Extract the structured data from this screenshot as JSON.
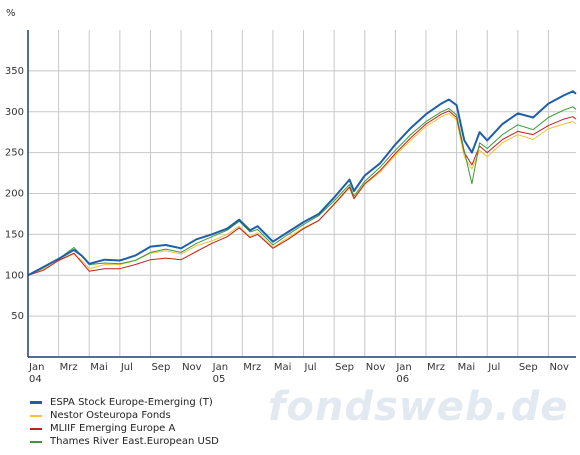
{
  "chart_data": {
    "type": "line",
    "ylabel": "%",
    "ylim": [
      0,
      400
    ],
    "yticks": [
      50,
      100,
      150,
      200,
      250,
      300,
      350
    ],
    "x_ticks": [
      {
        "month": "Jan",
        "year": "04",
        "t": 0
      },
      {
        "month": "Mrz",
        "year": "",
        "t": 2
      },
      {
        "month": "Mai",
        "year": "",
        "t": 4
      },
      {
        "month": "Jul",
        "year": "",
        "t": 6
      },
      {
        "month": "Sep",
        "year": "",
        "t": 8
      },
      {
        "month": "Nov",
        "year": "",
        "t": 10
      },
      {
        "month": "Jan",
        "year": "05",
        "t": 12
      },
      {
        "month": "Mrz",
        "year": "",
        "t": 14
      },
      {
        "month": "Mai",
        "year": "",
        "t": 16
      },
      {
        "month": "Jul",
        "year": "",
        "t": 18
      },
      {
        "month": "Sep",
        "year": "",
        "t": 20
      },
      {
        "month": "Nov",
        "year": "",
        "t": 22
      },
      {
        "month": "Jan",
        "year": "06",
        "t": 24
      },
      {
        "month": "Mrz",
        "year": "",
        "t": 26
      },
      {
        "month": "Mai",
        "year": "",
        "t": 28
      },
      {
        "month": "Jul",
        "year": "",
        "t": 30
      },
      {
        "month": "Sep",
        "year": "",
        "t": 32
      },
      {
        "month": "Nov",
        "year": "",
        "t": 34
      }
    ],
    "xlim": [
      0,
      35.8
    ],
    "grid": true,
    "series": [
      {
        "name": "ESPA Stock Europe-Emerging (T)",
        "color": "#1f5fa8",
        "width": 2,
        "points": [
          [
            0,
            100
          ],
          [
            1,
            110
          ],
          [
            2,
            120
          ],
          [
            3,
            131
          ],
          [
            3.5,
            124
          ],
          [
            4,
            114
          ],
          [
            5,
            119
          ],
          [
            6,
            118
          ],
          [
            7,
            124
          ],
          [
            8,
            135
          ],
          [
            9,
            137
          ],
          [
            10,
            133
          ],
          [
            11,
            144
          ],
          [
            12,
            150
          ],
          [
            13,
            157
          ],
          [
            13.8,
            168
          ],
          [
            14.5,
            155
          ],
          [
            15,
            160
          ],
          [
            16,
            141
          ],
          [
            17,
            153
          ],
          [
            18,
            165
          ],
          [
            19,
            175
          ],
          [
            20,
            195
          ],
          [
            21,
            217
          ],
          [
            21.3,
            203
          ],
          [
            22,
            222
          ],
          [
            23,
            237
          ],
          [
            24,
            260
          ],
          [
            25,
            280
          ],
          [
            26,
            297
          ],
          [
            27,
            310
          ],
          [
            27.5,
            315
          ],
          [
            28,
            308
          ],
          [
            28.5,
            265
          ],
          [
            29,
            250
          ],
          [
            29.5,
            275
          ],
          [
            30,
            265
          ],
          [
            31,
            285
          ],
          [
            32,
            298
          ],
          [
            33,
            293
          ],
          [
            34,
            310
          ],
          [
            35,
            320
          ],
          [
            35.6,
            325
          ],
          [
            35.8,
            322
          ]
        ]
      },
      {
        "name": "Nestor Osteuropa Fonds",
        "color": "#f2c230",
        "width": 1,
        "points": [
          [
            0,
            100
          ],
          [
            1,
            107
          ],
          [
            2,
            118
          ],
          [
            3,
            126
          ],
          [
            3.5,
            118
          ],
          [
            4,
            108
          ],
          [
            5,
            113
          ],
          [
            6,
            113
          ],
          [
            7,
            118
          ],
          [
            8,
            127
          ],
          [
            9,
            130
          ],
          [
            10,
            126
          ],
          [
            11,
            136
          ],
          [
            12,
            142
          ],
          [
            13,
            150
          ],
          [
            13.8,
            160
          ],
          [
            14.5,
            147
          ],
          [
            15,
            152
          ],
          [
            16,
            134
          ],
          [
            17,
            146
          ],
          [
            18,
            158
          ],
          [
            19,
            167
          ],
          [
            20,
            186
          ],
          [
            21,
            207
          ],
          [
            21.3,
            193
          ],
          [
            22,
            211
          ],
          [
            23,
            226
          ],
          [
            24,
            247
          ],
          [
            25,
            265
          ],
          [
            26,
            282
          ],
          [
            27,
            294
          ],
          [
            27.5,
            298
          ],
          [
            28,
            290
          ],
          [
            28.5,
            245
          ],
          [
            29,
            230
          ],
          [
            29.5,
            253
          ],
          [
            30,
            245
          ],
          [
            31,
            262
          ],
          [
            32,
            272
          ],
          [
            33,
            266
          ],
          [
            34,
            279
          ],
          [
            35,
            285
          ],
          [
            35.6,
            288
          ],
          [
            35.8,
            285
          ]
        ]
      },
      {
        "name": "MLIIF Emerging Europe A",
        "color": "#c41e1e",
        "width": 1,
        "points": [
          [
            0,
            100
          ],
          [
            1,
            106
          ],
          [
            2,
            118
          ],
          [
            3,
            127
          ],
          [
            3.5,
            116
          ],
          [
            4,
            105
          ],
          [
            5,
            108
          ],
          [
            6,
            108
          ],
          [
            7,
            113
          ],
          [
            8,
            119
          ],
          [
            9,
            121
          ],
          [
            10,
            119
          ],
          [
            11,
            129
          ],
          [
            12,
            139
          ],
          [
            13,
            147
          ],
          [
            13.8,
            158
          ],
          [
            14.5,
            146
          ],
          [
            15,
            150
          ],
          [
            16,
            133
          ],
          [
            17,
            144
          ],
          [
            18,
            157
          ],
          [
            19,
            167
          ],
          [
            20,
            187
          ],
          [
            21,
            208
          ],
          [
            21.3,
            194
          ],
          [
            22,
            212
          ],
          [
            23,
            228
          ],
          [
            24,
            249
          ],
          [
            25,
            268
          ],
          [
            26,
            285
          ],
          [
            27,
            297
          ],
          [
            27.5,
            301
          ],
          [
            28,
            293
          ],
          [
            28.5,
            250
          ],
          [
            29,
            235
          ],
          [
            29.5,
            258
          ],
          [
            30,
            250
          ],
          [
            31,
            266
          ],
          [
            32,
            276
          ],
          [
            33,
            272
          ],
          [
            34,
            283
          ],
          [
            35,
            291
          ],
          [
            35.6,
            294
          ],
          [
            35.8,
            291
          ]
        ]
      },
      {
        "name": "Thames River East.European USD",
        "color": "#3a9a3a",
        "width": 1,
        "points": [
          [
            0,
            100
          ],
          [
            1,
            109
          ],
          [
            2,
            120
          ],
          [
            3,
            134
          ],
          [
            3.5,
            124
          ],
          [
            4,
            113
          ],
          [
            5,
            115
          ],
          [
            6,
            114
          ],
          [
            7,
            118
          ],
          [
            8,
            128
          ],
          [
            9,
            132
          ],
          [
            10,
            128
          ],
          [
            11,
            139
          ],
          [
            12,
            147
          ],
          [
            13,
            155
          ],
          [
            13.8,
            166
          ],
          [
            14.5,
            153
          ],
          [
            15,
            156
          ],
          [
            16,
            137
          ],
          [
            17,
            150
          ],
          [
            18,
            162
          ],
          [
            19,
            173
          ],
          [
            20,
            191
          ],
          [
            21,
            211
          ],
          [
            21.3,
            197
          ],
          [
            22,
            215
          ],
          [
            23,
            232
          ],
          [
            24,
            253
          ],
          [
            25,
            272
          ],
          [
            26,
            288
          ],
          [
            27,
            300
          ],
          [
            27.5,
            304
          ],
          [
            28,
            296
          ],
          [
            28.5,
            252
          ],
          [
            29,
            212
          ],
          [
            29.5,
            262
          ],
          [
            30,
            255
          ],
          [
            31,
            272
          ],
          [
            32,
            284
          ],
          [
            33,
            278
          ],
          [
            34,
            293
          ],
          [
            35,
            302
          ],
          [
            35.6,
            306
          ],
          [
            35.8,
            303
          ]
        ]
      }
    ]
  },
  "watermark": "fondsweb.de"
}
